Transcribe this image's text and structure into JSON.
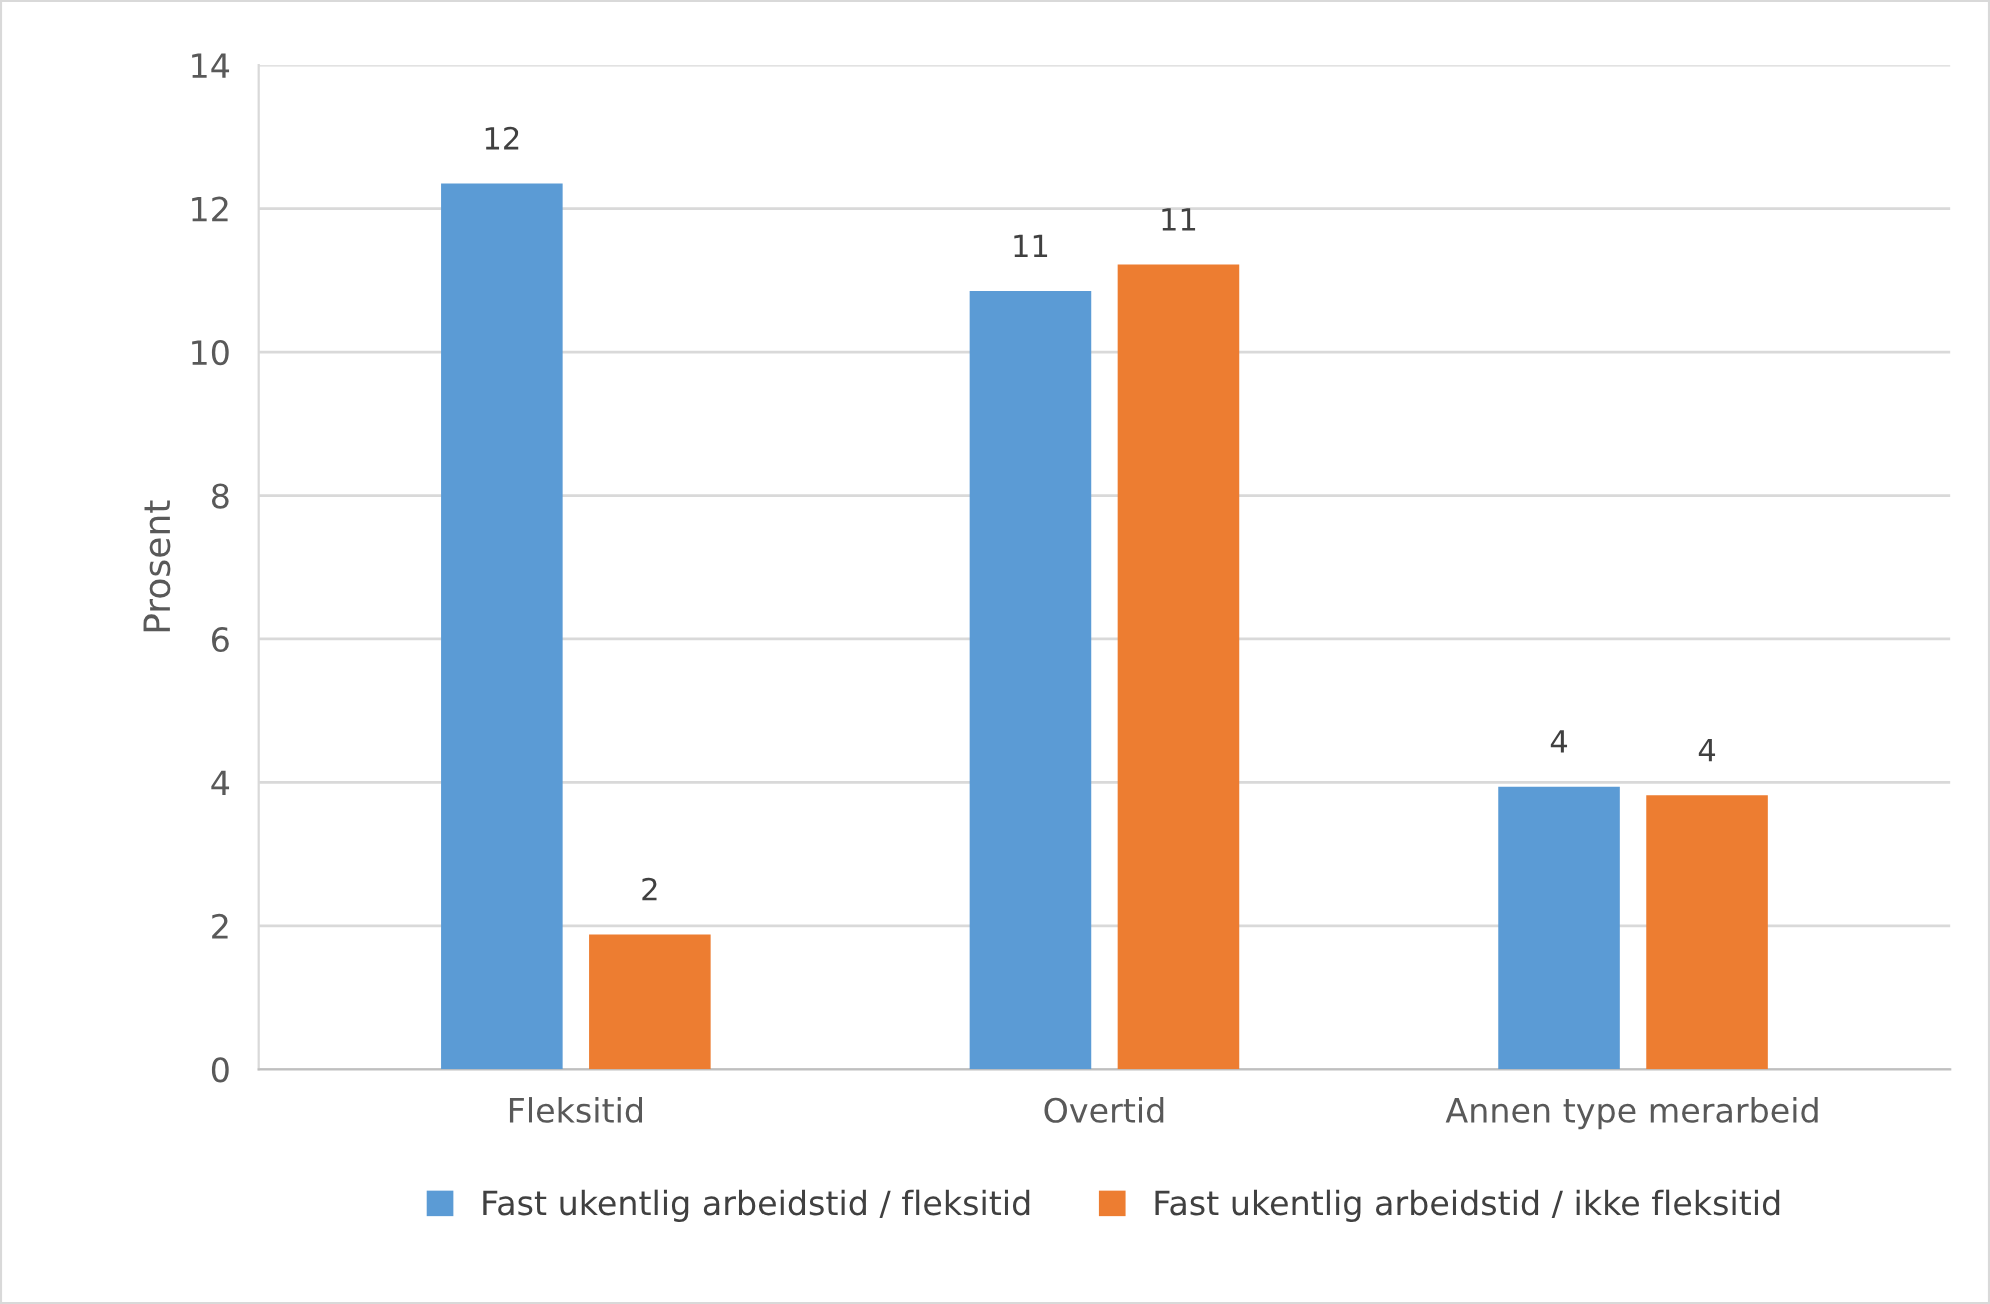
{
  "chart_data": {
    "type": "bar",
    "ylabel": "Prosent",
    "categories": [
      "Fleksitid",
      "Overtid",
      "Annen type merarbeid"
    ],
    "series": [
      {
        "name": "Fast ukentlig arbeidstid / fleksitid",
        "color": "#5b9bd5",
        "values": [
          12.35,
          10.85,
          3.94
        ],
        "value_labels": [
          "12",
          "11",
          "4"
        ]
      },
      {
        "name": "Fast ukentlig arbeidstid / ikke fleksitid",
        "color": "#ed7d31",
        "values": [
          1.88,
          11.22,
          3.82
        ],
        "value_labels": [
          "2",
          "11",
          "4"
        ]
      }
    ],
    "ylim": [
      0,
      14
    ],
    "yticks": [
      0,
      2,
      4,
      6,
      8,
      10,
      12,
      14
    ],
    "grid": "y",
    "legend": "bottom"
  }
}
